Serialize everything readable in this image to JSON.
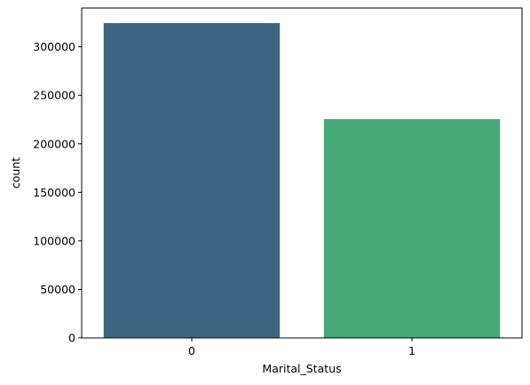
{
  "chart_data": {
    "type": "bar",
    "categories": [
      "0",
      "1"
    ],
    "values": [
      324500,
      225500
    ],
    "xlabel": "Marital_Status",
    "ylabel": "count",
    "ylim": [
      0,
      340000
    ],
    "yticks": [
      0,
      50000,
      100000,
      150000,
      200000,
      250000,
      300000
    ],
    "ytick_labels": [
      "0",
      "50000",
      "100000",
      "150000",
      "200000",
      "250000",
      "300000"
    ],
    "colors": [
      "#3e6683",
      "#46a978"
    ],
    "grid": false,
    "legend": "none"
  }
}
